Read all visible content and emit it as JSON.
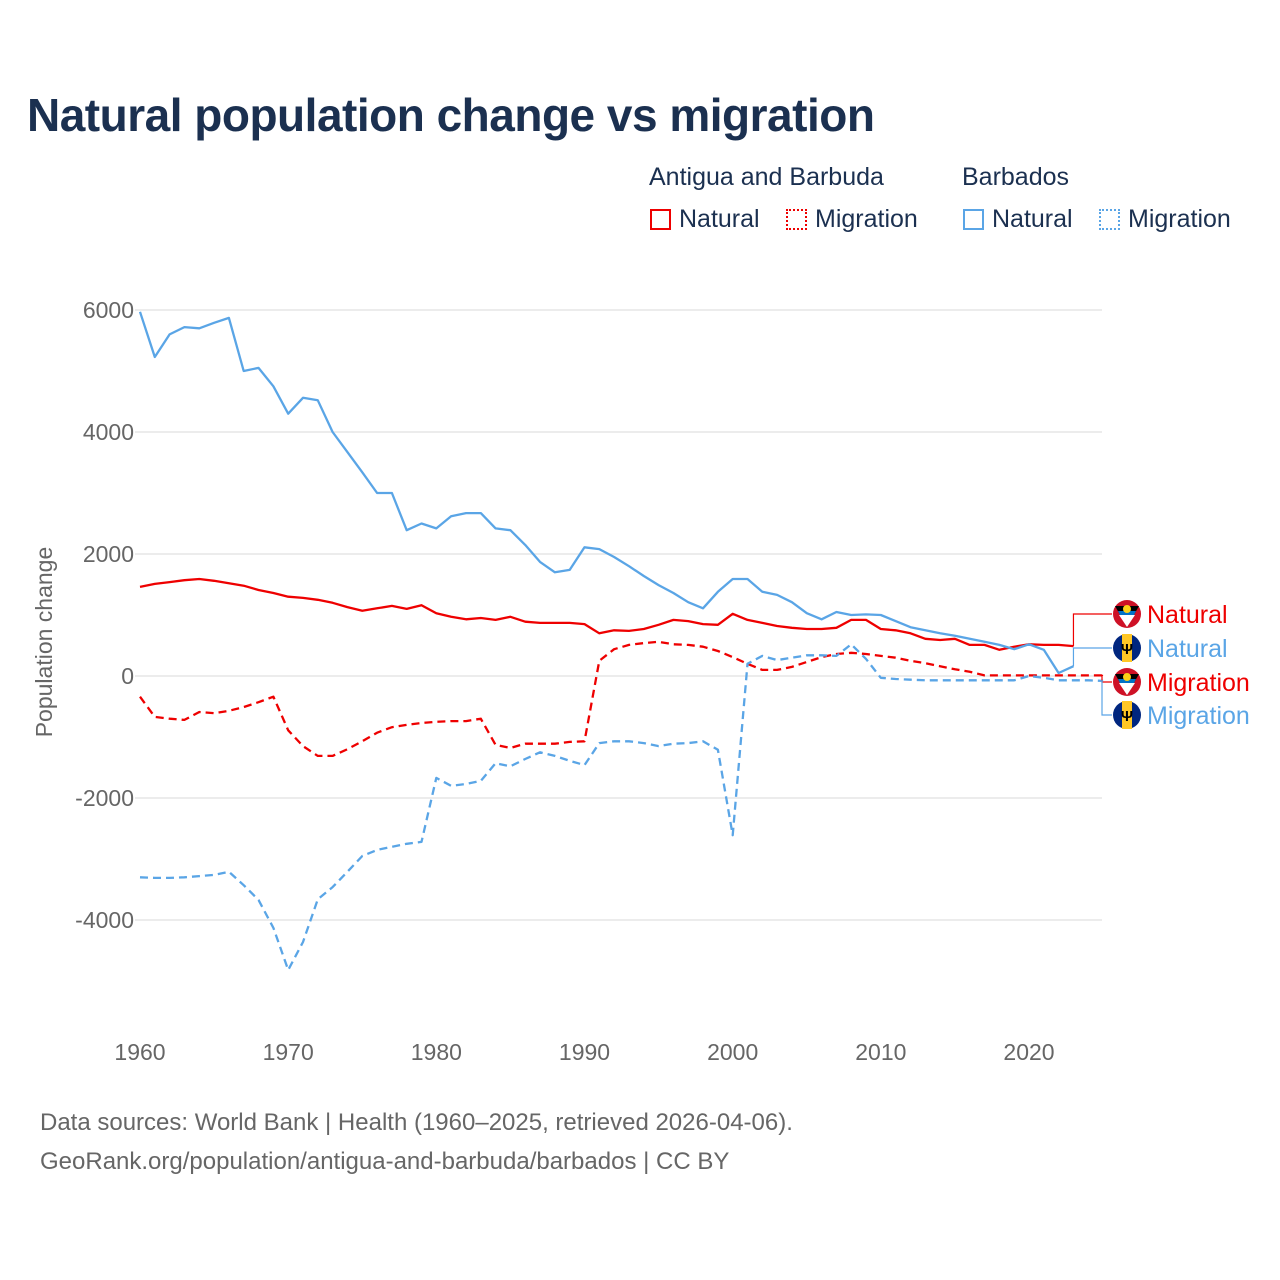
{
  "title": "Natural population change vs migration",
  "legend": {
    "groups": [
      {
        "name": "Antigua and Barbuda",
        "items": [
          {
            "label": "Natural",
            "style": "solid"
          },
          {
            "label": "Migration",
            "style": "dotted"
          }
        ],
        "color": "#ee0000"
      },
      {
        "name": "Barbados",
        "items": [
          {
            "label": "Natural",
            "style": "solid"
          },
          {
            "label": "Migration",
            "style": "dotted"
          }
        ],
        "color": "#5aa5e6"
      }
    ]
  },
  "footer": {
    "line1": "Data sources: World Bank | Health (1960–2025, retrieved 2026-04-06).",
    "line2": "GeoRank.org/population/antigua-and-barbuda/barbados | CC BY"
  },
  "chart_data": {
    "type": "line",
    "title": "Natural population change vs migration",
    "xlabel": "",
    "ylabel": "Population change",
    "xlim": [
      1960,
      2025
    ],
    "ylim": [
      -5000,
      6000
    ],
    "xticks": [
      1960,
      1970,
      1980,
      1990,
      2000,
      2010,
      2020
    ],
    "yticks": [
      -4000,
      -2000,
      0,
      2000,
      4000,
      6000
    ],
    "ytick_labels": [
      "-4000",
      "-2000",
      "0",
      "2000",
      "4000",
      "6000"
    ],
    "grid": true,
    "series": [
      {
        "name": "Antigua and Barbuda Natural",
        "label": "Natural",
        "country": "Antigua and Barbuda",
        "color": "#ee0000",
        "dash": false,
        "x0": 1960,
        "values": [
          1460,
          1510,
          1540,
          1570,
          1590,
          1560,
          1520,
          1480,
          1410,
          1360,
          1300,
          1280,
          1250,
          1200,
          1130,
          1070,
          1110,
          1150,
          1100,
          1160,
          1030,
          970,
          930,
          950,
          920,
          970,
          890,
          870,
          870,
          870,
          850,
          700,
          750,
          740,
          770,
          840,
          920,
          900,
          850,
          840,
          1020,
          920,
          870,
          820,
          790,
          770,
          770,
          790,
          920,
          920,
          770,
          750,
          700,
          610,
          590,
          610,
          510,
          510,
          430,
          480,
          520,
          510,
          510,
          490
        ]
      },
      {
        "name": "Barbados Natural",
        "label": "Natural",
        "country": "Barbados",
        "color": "#5aa5e6",
        "dash": false,
        "x0": 1960,
        "values": [
          5970,
          5230,
          5600,
          5720,
          5700,
          5790,
          5870,
          5000,
          5050,
          4750,
          4300,
          4560,
          4520,
          4000,
          3670,
          3340,
          3000,
          3000,
          2390,
          2500,
          2420,
          2620,
          2670,
          2670,
          2420,
          2390,
          2150,
          1870,
          1700,
          1740,
          2110,
          2080,
          1950,
          1800,
          1640,
          1490,
          1360,
          1210,
          1110,
          1380,
          1590,
          1590,
          1380,
          1330,
          1210,
          1030,
          930,
          1050,
          1000,
          1010,
          1000,
          900,
          800,
          750,
          700,
          660,
          610,
          560,
          510,
          440,
          520,
          430,
          50,
          160
        ]
      },
      {
        "name": "Antigua and Barbuda Migration",
        "label": "Migration",
        "country": "Antigua and Barbuda",
        "color": "#ee0000",
        "dash": true,
        "x0": 1960,
        "values": [
          -340,
          -670,
          -700,
          -720,
          -590,
          -610,
          -570,
          -510,
          -430,
          -340,
          -890,
          -1150,
          -1310,
          -1310,
          -1200,
          -1070,
          -930,
          -840,
          -800,
          -770,
          -750,
          -740,
          -740,
          -700,
          -1130,
          -1180,
          -1110,
          -1110,
          -1110,
          -1080,
          -1070,
          250,
          440,
          510,
          540,
          560,
          520,
          510,
          480,
          410,
          310,
          200,
          100,
          100,
          150,
          230,
          310,
          360,
          380,
          360,
          330,
          300,
          250,
          210,
          160,
          110,
          70,
          10,
          10,
          10,
          10,
          10,
          10,
          10,
          10,
          10
        ]
      },
      {
        "name": "Barbados Migration",
        "label": "Migration",
        "country": "Barbados",
        "color": "#5aa5e6",
        "dash": true,
        "x0": 1960,
        "values": [
          -3300,
          -3310,
          -3310,
          -3300,
          -3280,
          -3260,
          -3210,
          -3430,
          -3670,
          -4130,
          -4820,
          -4360,
          -3660,
          -3460,
          -3210,
          -2950,
          -2850,
          -2800,
          -2750,
          -2720,
          -1670,
          -1800,
          -1770,
          -1720,
          -1430,
          -1480,
          -1360,
          -1250,
          -1310,
          -1390,
          -1460,
          -1100,
          -1070,
          -1070,
          -1100,
          -1150,
          -1110,
          -1100,
          -1070,
          -1210,
          -2610,
          200,
          330,
          260,
          300,
          340,
          340,
          330,
          520,
          280,
          -30,
          -50,
          -60,
          -70,
          -70,
          -70,
          -70,
          -70,
          -70,
          -70,
          0,
          -30,
          -70,
          -70,
          -70,
          -80
        ]
      }
    ]
  }
}
